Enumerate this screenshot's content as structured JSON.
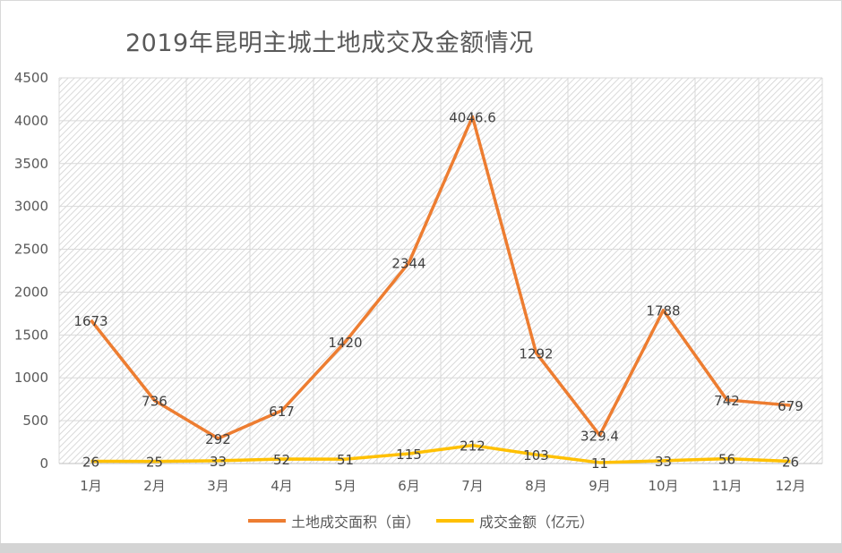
{
  "chart_data": {
    "type": "line",
    "title": "2019年昆明主城土地成交及金额情况",
    "xlabel": "",
    "ylabel": "",
    "categories": [
      "1月",
      "2月",
      "3月",
      "4月",
      "5月",
      "6月",
      "7月",
      "8月",
      "9月",
      "10月",
      "11月",
      "12月"
    ],
    "series": [
      {
        "name": "土地成交面积（亩）",
        "color": "#ED7D31",
        "values": [
          1673,
          736,
          292,
          617,
          1420,
          2344,
          4046.6,
          1292,
          329.4,
          1788,
          742,
          679
        ],
        "labels": [
          "1673",
          "736",
          "292",
          "617",
          "1420",
          "2344",
          "4046.6",
          "1292",
          "329.4",
          "1788",
          "742",
          "679"
        ]
      },
      {
        "name": "成交金额（亿元）",
        "color": "#FFC000",
        "values": [
          26,
          25,
          33,
          52,
          51,
          115,
          212,
          103,
          11,
          33,
          56,
          26
        ],
        "labels": [
          "26",
          "25",
          "33",
          "52",
          "51",
          "115",
          "212",
          "103",
          "11",
          "33",
          "56",
          "26"
        ]
      }
    ],
    "ylim": [
      0,
      4500
    ],
    "yticks": [
      "0",
      "500",
      "1000",
      "1500",
      "2000",
      "2500",
      "3000",
      "3500",
      "4000",
      "4500"
    ],
    "grid": true,
    "legend_position": "bottom"
  }
}
